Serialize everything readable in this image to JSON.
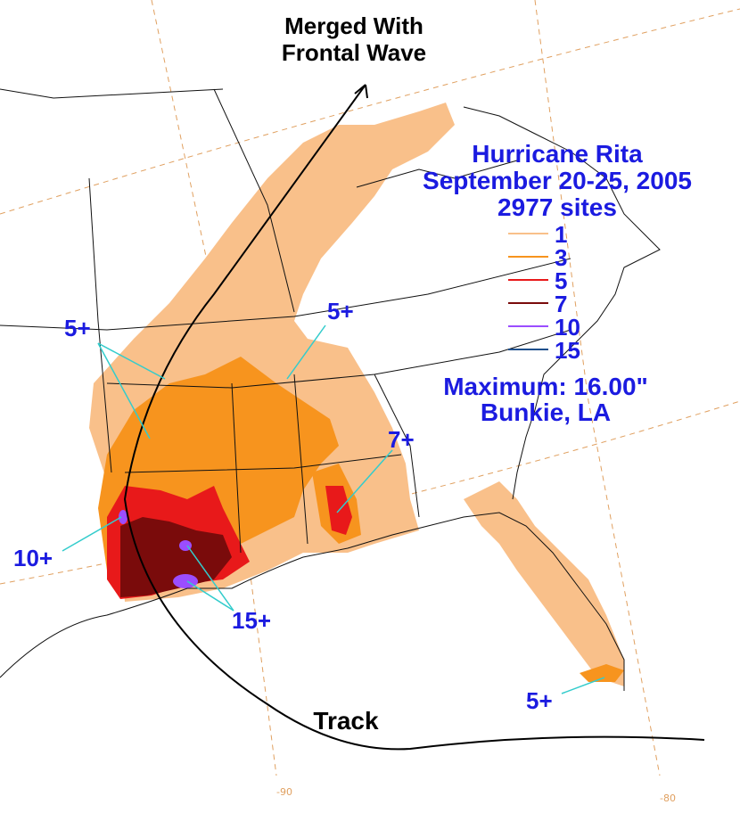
{
  "title": {
    "line1": "Hurricane Rita",
    "line2": "September 20-25, 2005",
    "line3": "2977 sites"
  },
  "legend": {
    "items": [
      {
        "label": "1",
        "color": "#f9c08a"
      },
      {
        "label": "3",
        "color": "#f7941e"
      },
      {
        "label": "5",
        "color": "#e8191a"
      },
      {
        "label": "7",
        "color": "#7a0b0b"
      },
      {
        "label": "10",
        "color": "#9b4dff"
      },
      {
        "label": "15",
        "color": "#1e4f8c"
      }
    ]
  },
  "maximum": {
    "label": "Maximum: 16.00\"",
    "location": "Bunkie, LA"
  },
  "annotations": {
    "merged": [
      "Merged With",
      "Frontal Wave"
    ],
    "track": "Track",
    "five_plus_west": "5+",
    "five_plus_ms": "5+",
    "seven_plus": "7+",
    "ten_plus": "10+",
    "fifteen_plus": "15+",
    "five_plus_fl": "5+"
  },
  "ticks": {
    "lon_90": "-90",
    "lon_80": "-80"
  },
  "colors": {
    "label_blue": "#1b1be0",
    "pointer_cyan": "#33cccc",
    "grid_orange": "#e0a060"
  }
}
